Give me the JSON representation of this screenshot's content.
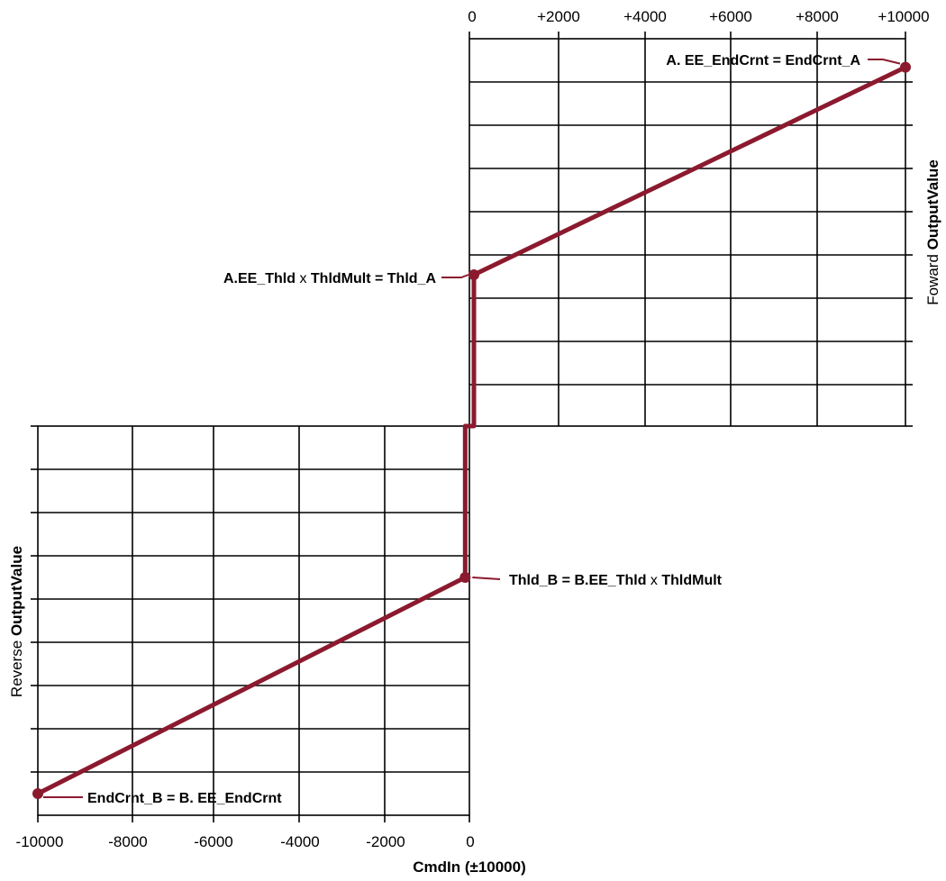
{
  "chart_data": {
    "type": "line",
    "top_ticks": [
      "0",
      "+2000",
      "+4000",
      "+6000",
      "+8000",
      "+10000"
    ],
    "bottom_ticks": [
      "-10000",
      "-8000",
      "-6000",
      "-4000",
      "-2000",
      "0"
    ],
    "xlabel": "CmdIn (±10000)",
    "ylabel_forward": {
      "normal": "Foward ",
      "bold": "OutputValue"
    },
    "ylabel_reverse": {
      "normal": "Reverse ",
      "bold": "OutputValue"
    },
    "xlim": [
      -10000,
      10000
    ],
    "series": [
      {
        "color": "#8b1a2e",
        "points": [
          {
            "x": -10000,
            "y": -8.5
          },
          {
            "x": -100,
            "y": -3.5
          },
          {
            "x": -100,
            "y": 0
          },
          {
            "x": 100,
            "y": 0
          },
          {
            "x": 100,
            "y": 3.5
          },
          {
            "x": 10000,
            "y": 8.3
          }
        ]
      }
    ],
    "annotations": [
      {
        "id": "end-a",
        "text": "A. EE_EndCrnt = EndCrnt_A",
        "x": 10000,
        "y": 8.3
      },
      {
        "id": "thld-a",
        "pre": "A.EE_Thld ",
        "mid": "x",
        "post": " ThldMult = Thld_A",
        "x": 100,
        "y": 3.5
      },
      {
        "id": "thld-b",
        "pre": "Thld_B = B.EE_Thld ",
        "mid": "x",
        "post": " ThldMult",
        "x": -100,
        "y": -3.5
      },
      {
        "id": "end-b",
        "text": "EndCrnt_B = B. EE_EndCrnt",
        "x": -10000,
        "y": -8.5
      }
    ]
  }
}
